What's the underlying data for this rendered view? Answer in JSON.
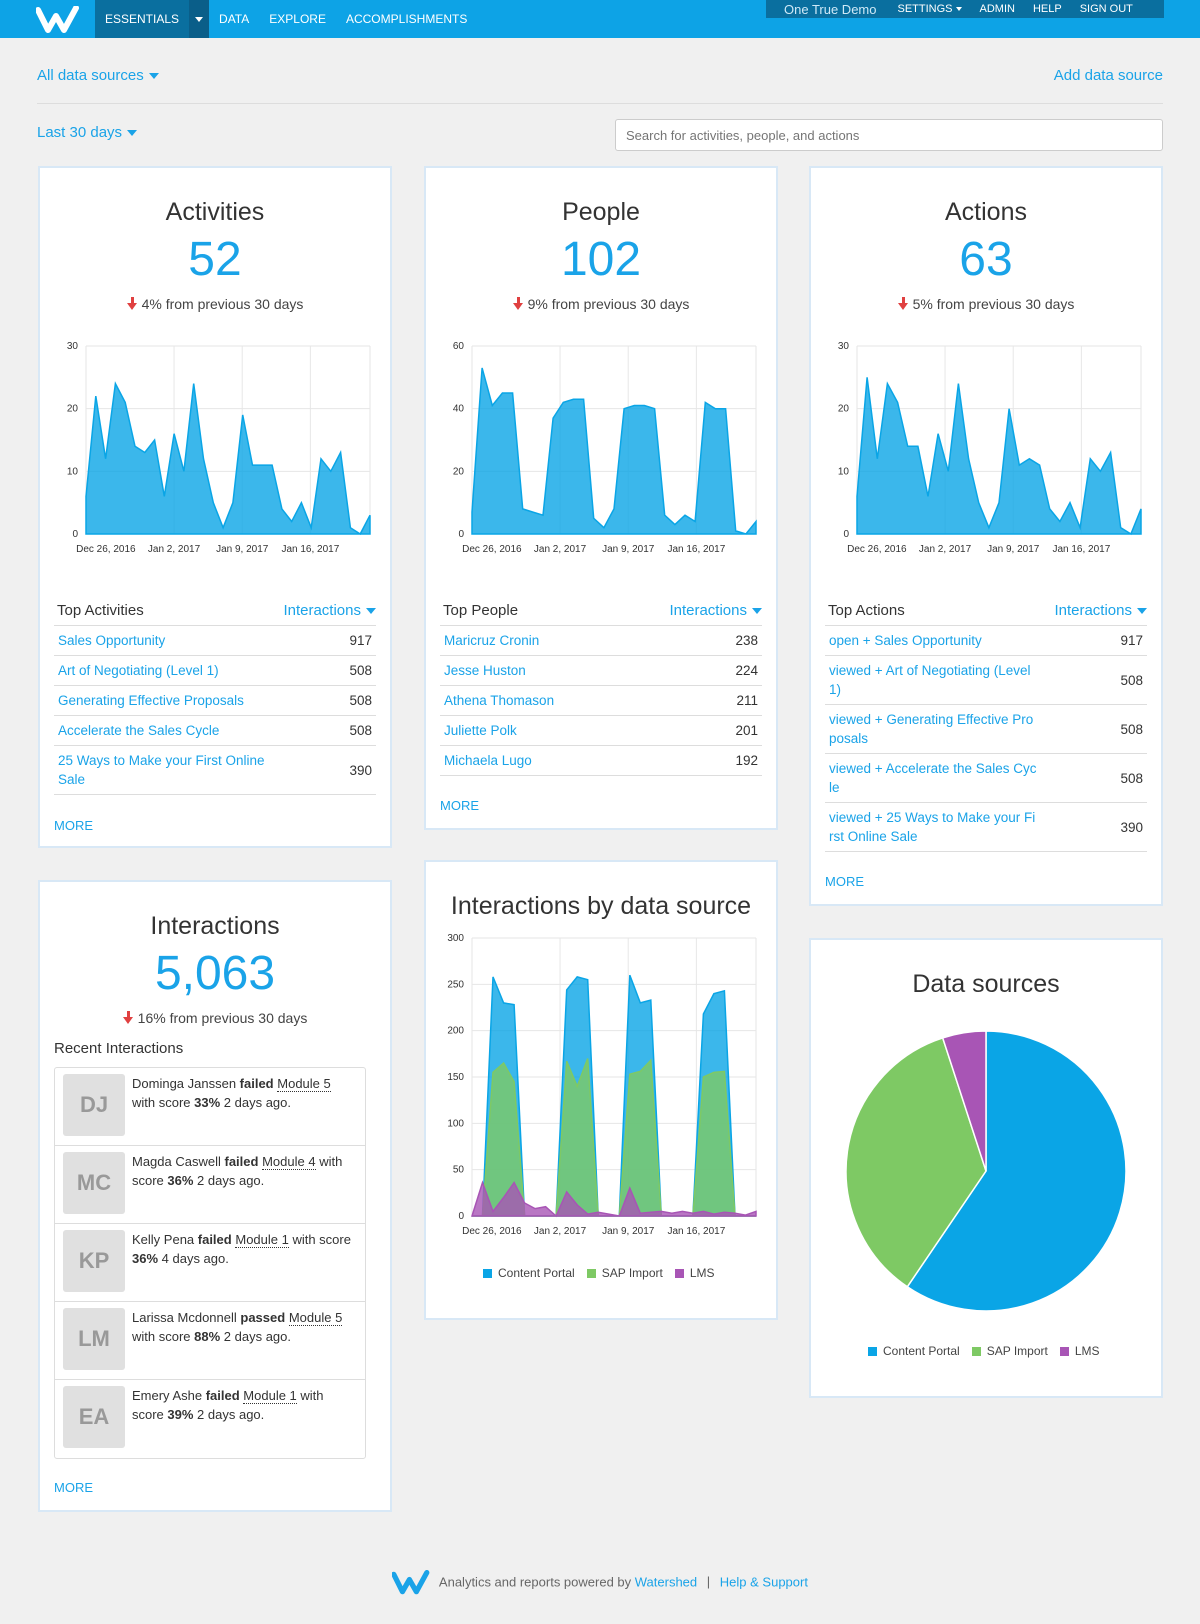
{
  "nav": {
    "brand_icon": "watershed-w-logo",
    "items": [
      "ESSENTIALS",
      "DATA",
      "EXPLORE",
      "ACCOMPLISHMENTS"
    ],
    "org_name": "One True Demo",
    "right_items": [
      "SETTINGS",
      "ADMIN",
      "HELP",
      "SIGN OUT"
    ]
  },
  "filters": {
    "data_sources": "All data sources",
    "add_source": "Add data source",
    "date_range": "Last 30 days",
    "search_placeholder": "Search for activities, people, and actions"
  },
  "colors": {
    "accent": "#1aa3e8",
    "content_portal": "#0aa5e6",
    "sap_import": "#7ec964",
    "lms": "#a855b5",
    "down": "#e04040"
  },
  "activities": {
    "title": "Activities",
    "count": "52",
    "change": "4%",
    "change_text": "from previous 30 days",
    "list_label": "Top Activities",
    "sort_label": "Interactions",
    "rows": [
      {
        "name": "Sales Opportunity",
        "value": "917"
      },
      {
        "name": "Art of Negotiating (Level 1)",
        "value": "508"
      },
      {
        "name": "Generating Effective Proposals",
        "value": "508"
      },
      {
        "name": "Accelerate the Sales Cycle",
        "value": "508"
      },
      {
        "name": "25 Ways to Make your First Online Sale",
        "value": "390"
      }
    ],
    "more": "MORE"
  },
  "people": {
    "title": "People",
    "count": "102",
    "change": "9%",
    "change_text": "from previous 30 days",
    "list_label": "Top People",
    "sort_label": "Interactions",
    "rows": [
      {
        "name": "Maricruz Cronin",
        "value": "238"
      },
      {
        "name": "Jesse Huston",
        "value": "224"
      },
      {
        "name": "Athena Thomason",
        "value": "211"
      },
      {
        "name": "Juliette Polk",
        "value": "201"
      },
      {
        "name": "Michaela Lugo",
        "value": "192"
      }
    ],
    "more": "MORE"
  },
  "actions": {
    "title": "Actions",
    "count": "63",
    "change": "5%",
    "change_text": "from previous 30 days",
    "list_label": "Top Actions",
    "sort_label": "Interactions",
    "rows": [
      {
        "name": "open + Sales Opportunity",
        "value": "917"
      },
      {
        "name": "viewed + Art of Negotiating (Level 1)",
        "value": "508"
      },
      {
        "name": "viewed + Generating Effective Pro posals",
        "value": "508"
      },
      {
        "name": "viewed + Accelerate the Sales Cyc le",
        "value": "508"
      },
      {
        "name": "viewed + 25 Ways to Make your Fi rst Online Sale",
        "value": "390"
      }
    ],
    "more": "MORE"
  },
  "interactions": {
    "title": "Interactions",
    "count": "5,063",
    "change": "16%",
    "change_text": "from previous 30 days",
    "recent_label": "Recent Interactions",
    "recent": [
      {
        "initials": "DJ",
        "name": "Dominga Janssen",
        "verb": "failed",
        "module": "Module 5",
        "pre": "with score",
        "score": "33%",
        "ago": "2 days ago."
      },
      {
        "initials": "MC",
        "name": "Magda Caswell",
        "verb": "failed",
        "module": "Module 4",
        "pre": "with score",
        "score": "36%",
        "ago": "2 days ago."
      },
      {
        "initials": "KP",
        "name": "Kelly Pena",
        "verb": "failed",
        "module": "Module 1",
        "pre": "with score",
        "score": "36%",
        "ago": "4 days ago."
      },
      {
        "initials": "LM",
        "name": "Larissa Mcdonnell",
        "verb": "passed",
        "module": "Module 5",
        "pre": "with score",
        "score": "88%",
        "ago": "2 days ago."
      },
      {
        "initials": "EA",
        "name": "Emery Ashe",
        "verb": "failed",
        "module": "Module 1",
        "pre": "with score",
        "score": "39%",
        "ago": "2 days ago."
      }
    ],
    "more": "MORE"
  },
  "by_source": {
    "title": "Interactions by data source"
  },
  "pie": {
    "title": "Data sources"
  },
  "footer": {
    "text": "Analytics and reports powered by",
    "brand": "Watershed",
    "sep": "|",
    "help": "Help & Support"
  },
  "chart_data": [
    {
      "id": "activities",
      "type": "area",
      "x_labels": [
        "Dec 26, 2016",
        "Jan 2, 2017",
        "Jan 9, 2017",
        "Jan 16, 2017"
      ],
      "y_ticks": [
        0,
        10,
        20,
        30
      ],
      "ylim": [
        0,
        30
      ],
      "series": [
        {
          "values": [
            6,
            22,
            12,
            24,
            21,
            14,
            13,
            15,
            6,
            16,
            10,
            24,
            12,
            5,
            1,
            5,
            19,
            11,
            11,
            11,
            4,
            2,
            5,
            1,
            12,
            10,
            13,
            1,
            0,
            3
          ]
        }
      ]
    },
    {
      "id": "people",
      "type": "area",
      "x_labels": [
        "Dec 26, 2016",
        "Jan 2, 2017",
        "Jan 9, 2017",
        "Jan 16, 2017"
      ],
      "y_ticks": [
        0,
        20,
        40,
        60
      ],
      "ylim": [
        0,
        60
      ],
      "series": [
        {
          "values": [
            7,
            53,
            41,
            45,
            45,
            8,
            7,
            6,
            37,
            42,
            43,
            43,
            5,
            2,
            8,
            40,
            41,
            41,
            40,
            6,
            3,
            6,
            4,
            42,
            40,
            40,
            1,
            0,
            4
          ]
        }
      ]
    },
    {
      "id": "actions",
      "type": "area",
      "x_labels": [
        "Dec 26, 2016",
        "Jan 2, 2017",
        "Jan 9, 2017",
        "Jan 16, 2017"
      ],
      "y_ticks": [
        0,
        10,
        20,
        30
      ],
      "ylim": [
        0,
        30
      ],
      "series": [
        {
          "values": [
            6,
            25,
            12,
            24,
            21,
            14,
            14,
            6,
            16,
            10,
            24,
            12,
            5,
            1,
            5,
            20,
            11,
            12,
            11,
            4,
            2,
            5,
            1,
            12,
            10,
            13,
            1,
            0,
            4
          ]
        }
      ]
    },
    {
      "id": "by_source",
      "type": "area",
      "x_labels": [
        "Dec 26, 2016",
        "Jan 2, 2017",
        "Jan 9, 2017",
        "Jan 16, 2017"
      ],
      "y_ticks": [
        0,
        50,
        100,
        150,
        200,
        250,
        300
      ],
      "ylim": [
        0,
        300
      ],
      "series": [
        {
          "name": "Content Portal",
          "values": [
            0,
            0,
            258,
            230,
            228,
            0,
            0,
            0,
            0,
            244,
            258,
            255,
            0,
            0,
            0,
            260,
            230,
            233,
            0,
            0,
            0,
            0,
            218,
            240,
            243,
            0,
            0,
            0
          ]
        },
        {
          "name": "SAP Import",
          "values": [
            0,
            0,
            155,
            165,
            145,
            0,
            0,
            0,
            0,
            167,
            140,
            170,
            0,
            0,
            0,
            153,
            156,
            168,
            0,
            0,
            0,
            0,
            150,
            155,
            156,
            0,
            0,
            0
          ]
        },
        {
          "name": "LMS",
          "values": [
            0,
            36,
            5,
            20,
            36,
            14,
            8,
            10,
            0,
            26,
            12,
            2,
            4,
            2,
            0,
            30,
            3,
            4,
            5,
            3,
            5,
            3,
            5,
            2,
            4,
            3,
            1,
            5
          ]
        }
      ],
      "legend": "bottom"
    },
    {
      "id": "pie",
      "type": "pie",
      "slices": [
        {
          "name": "Content Portal",
          "value": 59.5
        },
        {
          "name": "SAP Import",
          "value": 35.5
        },
        {
          "name": "LMS",
          "value": 5
        }
      ],
      "legend": "bottom"
    }
  ]
}
